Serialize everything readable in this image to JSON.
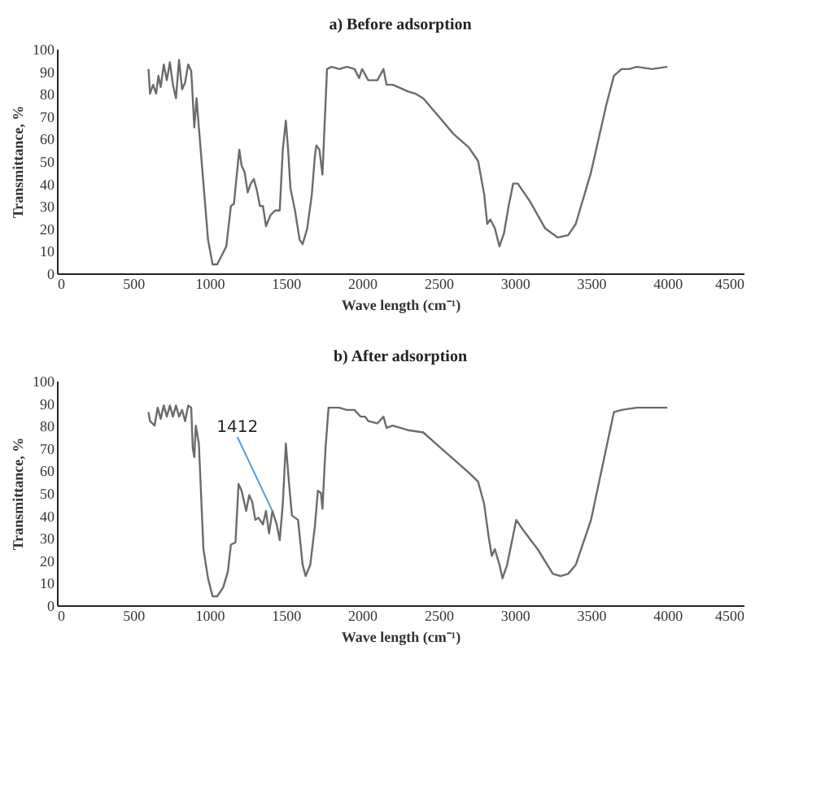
{
  "chart_data": [
    {
      "type": "line",
      "title": "a)  Before adsorption",
      "xlabel": "Wave length (cm⁻¹)",
      "ylabel": "Transmittance, %",
      "xlim": [
        0,
        4500
      ],
      "xticks": [
        0,
        500,
        1000,
        1500,
        2000,
        2500,
        3000,
        3500,
        4000,
        4500
      ],
      "ylim": [
        0,
        100
      ],
      "yticks": [
        0,
        10,
        20,
        30,
        40,
        50,
        60,
        70,
        80,
        90,
        100
      ],
      "series": [
        {
          "color": "#6b6b6b",
          "x": [
            600,
            610,
            630,
            650,
            665,
            680,
            700,
            720,
            740,
            760,
            780,
            800,
            820,
            840,
            860,
            880,
            890,
            900,
            915,
            930,
            960,
            990,
            1020,
            1050,
            1080,
            1110,
            1140,
            1160,
            1180,
            1195,
            1210,
            1230,
            1250,
            1270,
            1290,
            1310,
            1330,
            1350,
            1370,
            1400,
            1430,
            1460,
            1480,
            1500,
            1515,
            1530,
            1560,
            1590,
            1610,
            1640,
            1670,
            1690,
            1700,
            1720,
            1740,
            1750,
            1770,
            1800,
            1850,
            1900,
            1950,
            1980,
            2000,
            2040,
            2100,
            2140,
            2160,
            2200,
            2300,
            2350,
            2400,
            2500,
            2600,
            2700,
            2760,
            2800,
            2820,
            2840,
            2870,
            2900,
            2930,
            2960,
            2990,
            3020,
            3100,
            3200,
            3280,
            3350,
            3400,
            3500,
            3600,
            3650,
            3700,
            3750,
            3800,
            3900,
            4000
          ],
          "values": [
            91,
            80,
            84,
            80,
            88,
            83,
            93,
            86,
            94,
            84,
            78,
            95,
            82,
            85,
            93,
            90,
            78,
            65,
            78,
            65,
            40,
            15,
            4,
            4,
            8,
            12,
            30,
            31,
            45,
            55,
            48,
            45,
            36,
            40,
            42,
            37,
            30,
            30,
            21,
            26,
            28,
            28,
            55,
            68,
            55,
            38,
            28,
            15,
            13,
            20,
            35,
            52,
            57,
            55,
            44,
            60,
            91,
            92,
            91,
            92,
            91,
            87,
            91,
            86,
            86,
            91,
            84,
            84,
            81,
            80,
            78,
            70,
            62,
            56,
            50,
            35,
            22,
            24,
            20,
            12,
            18,
            30,
            40,
            40,
            32,
            20,
            16,
            17,
            22,
            45,
            75,
            88,
            91,
            91,
            92,
            91,
            92
          ]
        }
      ]
    },
    {
      "type": "line",
      "title": "b)  After adsorption",
      "xlabel": "Wave length (cm⁻¹)",
      "ylabel": "Transmittance, %",
      "xlim": [
        0,
        4500
      ],
      "xticks": [
        0,
        500,
        1000,
        1500,
        2000,
        2500,
        3000,
        3500,
        4000,
        4500
      ],
      "ylim": [
        0,
        100
      ],
      "yticks": [
        0,
        10,
        20,
        30,
        40,
        50,
        60,
        70,
        80,
        90,
        100
      ],
      "annotations": [
        {
          "text": "1412",
          "x": 1412,
          "y": 42
        }
      ],
      "series": [
        {
          "color": "#6b6b6b",
          "x": [
            600,
            610,
            640,
            660,
            680,
            700,
            720,
            740,
            760,
            780,
            800,
            820,
            840,
            860,
            880,
            890,
            900,
            910,
            930,
            960,
            990,
            1020,
            1050,
            1090,
            1120,
            1140,
            1170,
            1190,
            1210,
            1240,
            1260,
            1280,
            1300,
            1320,
            1350,
            1370,
            1390,
            1412,
            1440,
            1460,
            1480,
            1500,
            1520,
            1540,
            1580,
            1610,
            1630,
            1660,
            1690,
            1710,
            1730,
            1740,
            1760,
            1780,
            1850,
            1900,
            1950,
            1990,
            2020,
            2040,
            2100,
            2140,
            2160,
            2200,
            2300,
            2400,
            2500,
            2600,
            2700,
            2760,
            2800,
            2830,
            2850,
            2870,
            2900,
            2920,
            2950,
            2980,
            3010,
            3050,
            3150,
            3250,
            3300,
            3350,
            3400,
            3500,
            3600,
            3650,
            3700,
            3800,
            3900,
            4000
          ],
          "values": [
            86,
            82,
            80,
            88,
            83,
            89,
            84,
            89,
            84,
            89,
            84,
            87,
            82,
            89,
            88,
            70,
            66,
            80,
            72,
            25,
            12,
            4,
            4,
            8,
            15,
            27,
            28,
            54,
            51,
            42,
            49,
            46,
            38,
            39,
            36,
            42,
            32,
            42,
            36,
            29,
            45,
            72,
            55,
            40,
            38,
            18,
            13,
            18,
            35,
            51,
            50,
            43,
            70,
            88,
            88,
            87,
            87,
            84,
            84,
            82,
            81,
            84,
            79,
            80,
            78,
            77,
            71,
            65,
            59,
            55,
            45,
            30,
            22,
            25,
            18,
            12,
            18,
            28,
            38,
            34,
            25,
            14,
            13,
            14,
            18,
            38,
            70,
            86,
            87,
            88,
            88,
            88
          ]
        }
      ]
    }
  ]
}
